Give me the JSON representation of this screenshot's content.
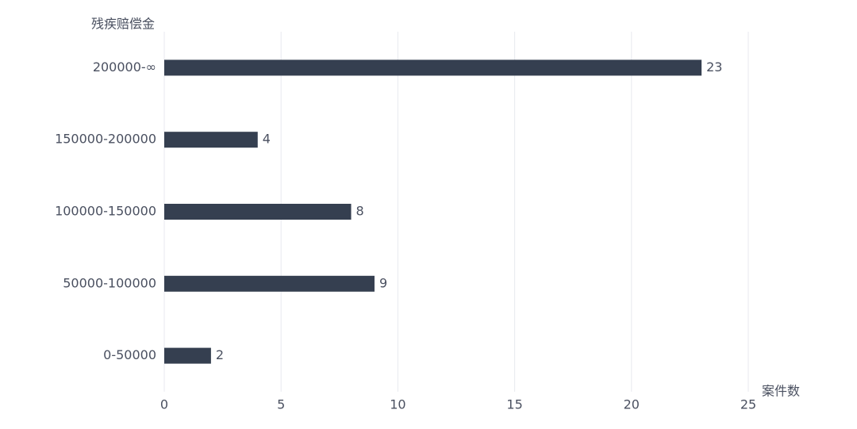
{
  "chart_data": {
    "type": "hbar",
    "y_axis_label": "残疾赔偿金",
    "x_axis_label": "案件数",
    "categories": [
      "200000-∞",
      "150000-200000",
      "100000-150000",
      "50000-100000",
      "0-50000"
    ],
    "values": [
      23,
      4,
      8,
      9,
      2
    ],
    "color": "#353f50",
    "xlim": [
      0,
      25
    ],
    "xticks": [
      0,
      5,
      10,
      15,
      20,
      25
    ],
    "grid": true
  }
}
